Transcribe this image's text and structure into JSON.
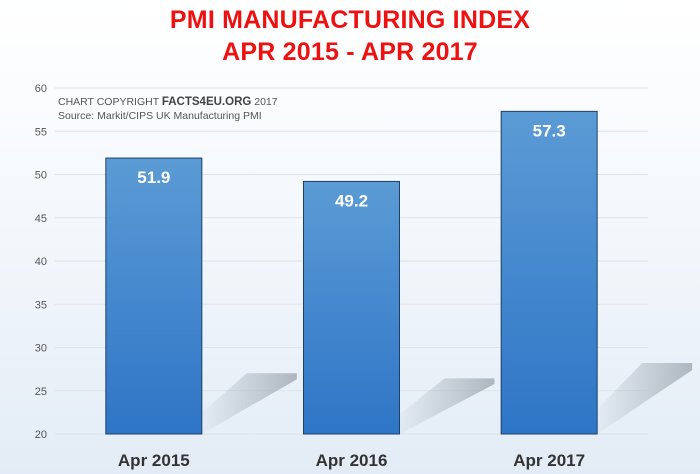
{
  "header": {
    "title_line1": "PMI MANUFACTURING INDEX",
    "title_line2": "APR 2015 - APR 2017"
  },
  "credits": {
    "line1_prefix": "CHART COPYRIGHT ",
    "line1_brand": "FACTS4EU.ORG",
    "line1_suffix": " 2017",
    "line2": "Source: Markit/CIPS UK Manufacturing PMI"
  },
  "colors": {
    "title": "#ee1111",
    "bar_top": "#5b9bd5",
    "bar_bottom": "#2e75c6",
    "bar_border": "#1f3f66",
    "value_label": "#ffffff",
    "gridline": "#dde3ea"
  },
  "chart_data": {
    "type": "bar",
    "categories": [
      "Apr 2015",
      "Apr 2016",
      "Apr 2017"
    ],
    "values": [
      51.9,
      49.2,
      57.3
    ],
    "data_labels": [
      "51.9",
      "49.2",
      "57.3"
    ],
    "title": "PMI MANUFACTURING INDEX APR 2015 - APR 2017",
    "xlabel": "",
    "ylabel": "",
    "ylim": [
      20,
      60
    ],
    "yticks": [
      20,
      25,
      30,
      35,
      40,
      45,
      50,
      55,
      60
    ],
    "grid": true,
    "legend": "none"
  }
}
